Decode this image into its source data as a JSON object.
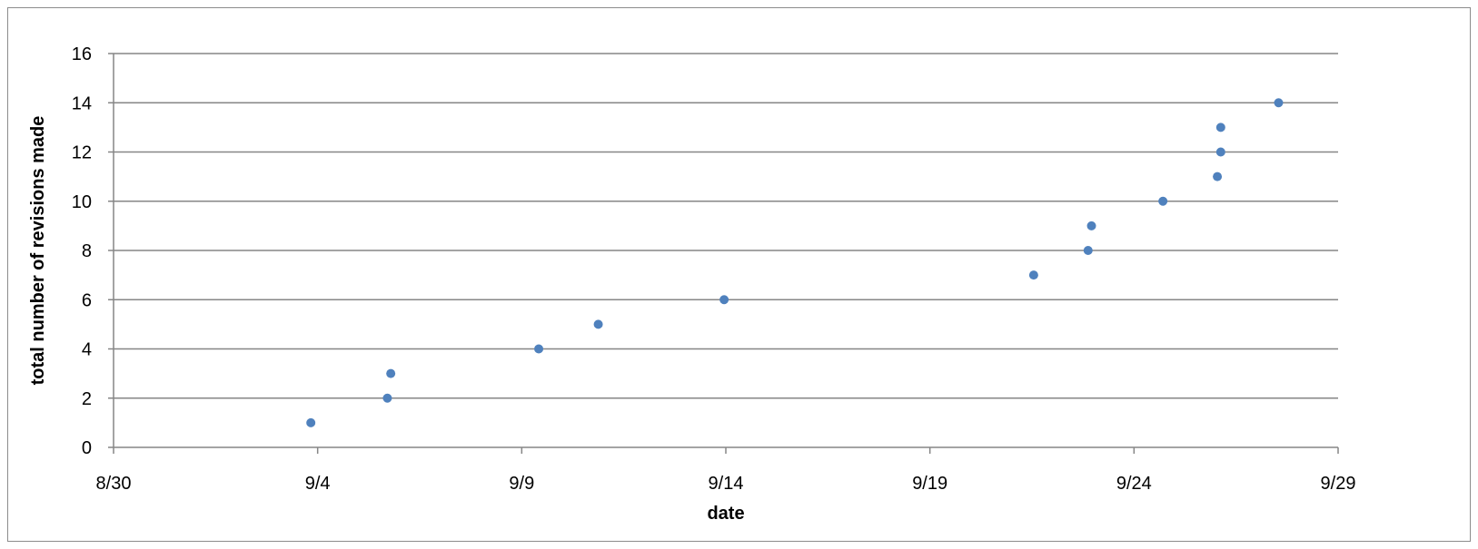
{
  "chart_data": {
    "type": "scatter",
    "title": "",
    "xlabel": "date",
    "ylabel": "total number of revisions made",
    "x_type": "date",
    "xlim": [
      "8/30",
      "9/29"
    ],
    "x_ticks": [
      "8/30",
      "9/4",
      "9/9",
      "9/14",
      "9/19",
      "9/24",
      "9/29"
    ],
    "ylim": [
      0,
      16
    ],
    "y_ticks": [
      0,
      2,
      4,
      6,
      8,
      10,
      12,
      14,
      16
    ],
    "grid": true,
    "legend": "none",
    "marker_color": "#4f81bd",
    "gridline_color": "#868686",
    "series": [
      {
        "x": [
          "9/3 20:00",
          "9/5 17:00",
          "9/5 19:00",
          "9/9 10:00",
          "9/10 21:00",
          "9/13 23:00",
          "9/21 13:00",
          "9/22 21:00",
          "9/22 23:00",
          "9/24 17:00",
          "9/26 1:00",
          "9/26 3:00",
          "9/26 3:00",
          "9/27 13:00"
        ],
        "y": [
          1,
          2,
          3,
          4,
          5,
          6,
          7,
          8,
          9,
          10,
          11,
          12,
          13,
          14
        ]
      }
    ]
  }
}
